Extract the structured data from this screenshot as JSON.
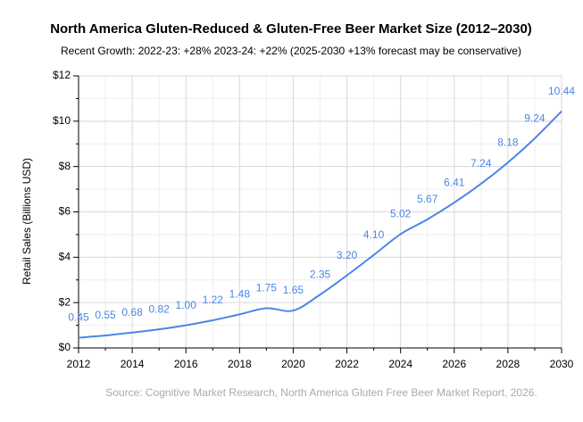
{
  "chart_data": {
    "type": "line",
    "title": "North America Gluten-Reduced & Gluten-Free Beer Market Size (2012–2030)",
    "subtitle": "Recent Growth: 2022-23: +28%  2023-24: +22%  (2025-2030 +13% forecast may be conservative)",
    "y_label": "Retail Sales (Billions USD)",
    "source": "Source: Cognitive Market Research, North America Gluten Free Beer Market Report, 2026.",
    "x": [
      2012,
      2013,
      2014,
      2015,
      2016,
      2017,
      2018,
      2019,
      2020,
      2021,
      2022,
      2023,
      2024,
      2025,
      2026,
      2027,
      2028,
      2029,
      2030
    ],
    "values": [
      0.45,
      0.55,
      0.68,
      0.82,
      1.0,
      1.22,
      1.48,
      1.75,
      1.65,
      2.35,
      3.2,
      4.1,
      5.02,
      5.67,
      6.41,
      7.24,
      8.18,
      9.24,
      10.44
    ],
    "value_labels": [
      "0.45",
      "0.55",
      "0.68",
      "0.82",
      "1.00",
      "1.22",
      "1.48",
      "1.75",
      "1.65",
      "2.35",
      "3.20",
      "4.10",
      "5.02",
      "5.67",
      "6.41",
      "7.24",
      "8.18",
      "9.24",
      "10.44"
    ],
    "color": "#4a86e8",
    "xlim": [
      2012,
      2030
    ],
    "xticks": [
      2012,
      2014,
      2016,
      2018,
      2020,
      2022,
      2024,
      2026,
      2028,
      2030
    ],
    "ylim": [
      0,
      12
    ],
    "yticks": [
      {
        "value": 0,
        "label": "$0"
      },
      {
        "value": 2,
        "label": "$2"
      },
      {
        "value": 4,
        "label": "$4"
      },
      {
        "value": 6,
        "label": "$6"
      },
      {
        "value": 8,
        "label": "$8"
      },
      {
        "value": 10,
        "label": "$10"
      },
      {
        "value": 12,
        "label": "$12"
      }
    ],
    "grid": true
  }
}
